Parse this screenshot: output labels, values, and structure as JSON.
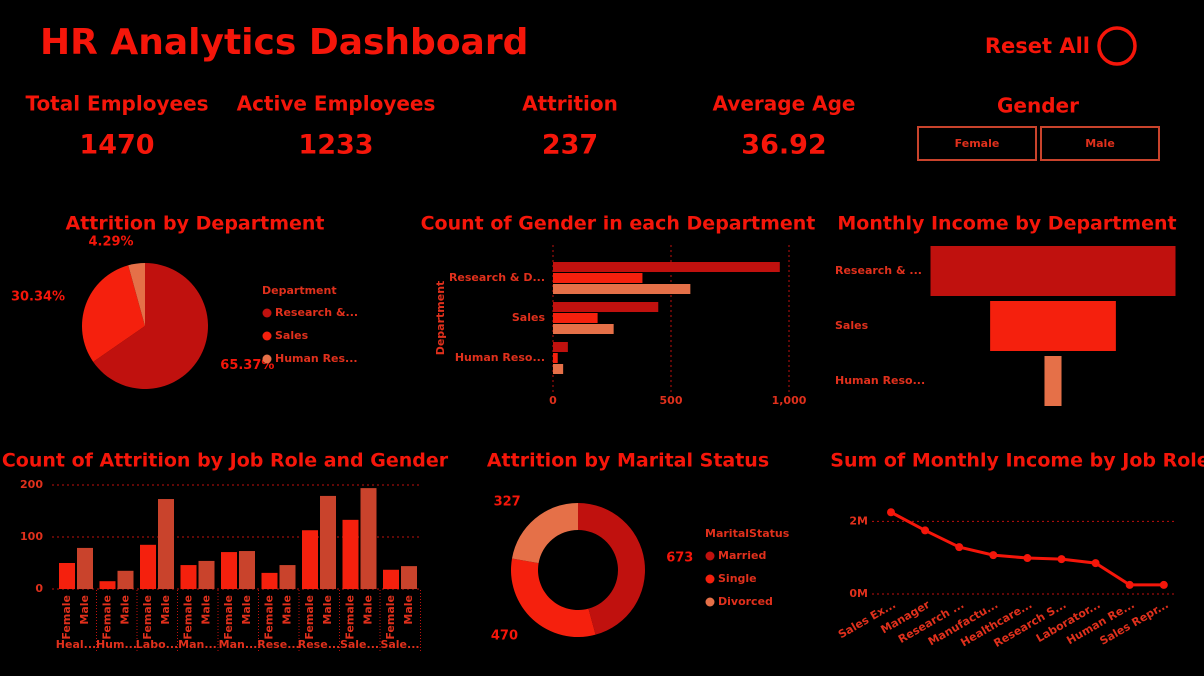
{
  "header": {
    "title": "HR Analytics Dashboard",
    "reset": "Reset All"
  },
  "kpis": [
    {
      "label": "Total Employees",
      "value": 1470
    },
    {
      "label": "Active Employees",
      "value": 1233
    },
    {
      "label": "Attrition",
      "value": 237
    },
    {
      "label": "Average Age",
      "value": 36.92
    }
  ],
  "gender_slicer": {
    "title": "Gender",
    "options": [
      "Female",
      "Male"
    ]
  },
  "chart_data": [
    {
      "type": "pie",
      "title": "Attrition by Department",
      "legend_title": "Department",
      "categories": [
        "Research &...",
        "Sales",
        "Human Res..."
      ],
      "values": [
        65.37,
        30.34,
        4.29
      ],
      "value_labels": [
        "65.37%",
        "30.34%",
        "4.29%"
      ],
      "colors": [
        "#c0110e",
        "#f5200d",
        "#e57048"
      ]
    },
    {
      "type": "hbar",
      "title": "Count of Gender in each Department",
      "y_label": "Department",
      "categories": [
        "Research & D...",
        "Sales",
        "Human Reso..."
      ],
      "series": [
        {
          "color": "#c0110e",
          "values": [
            961,
            446,
            63
          ]
        },
        {
          "color": "#f5200d",
          "values": [
            379,
            189,
            20
          ]
        },
        {
          "color": "#e57048",
          "values": [
            582,
            257,
            43
          ]
        }
      ],
      "xlim": [
        0,
        1000
      ],
      "xticks": [
        0,
        500,
        {
          "value": 1000,
          "label": "1,000"
        }
      ],
      "grid": true
    },
    {
      "type": "funnel",
      "title": "Monthly Income by Department",
      "categories": [
        "Research & ...",
        "Sales",
        "Human Reso..."
      ],
      "values": [
        6040000,
        3100000,
        420000
      ],
      "colors": [
        "#c0110e",
        "#f5200d",
        "#e57048"
      ]
    },
    {
      "type": "column",
      "title": "Count of Attrition by Job Role and Gender",
      "categories": [
        "Heal...",
        "Hum...",
        "Labo...",
        "Man...",
        "Man...",
        "Rese...",
        "Rese...",
        "Sale...",
        "Sale..."
      ],
      "series": [
        {
          "name": "Female",
          "color": "#f5200d",
          "values": [
            50,
            15,
            85,
            46,
            71,
            31,
            113,
            133,
            37
          ]
        },
        {
          "name": "Male",
          "color": "#c9432c",
          "values": [
            79,
            35,
            173,
            54,
            73,
            46,
            179,
            194,
            44
          ]
        }
      ],
      "ylim": [
        0,
        200
      ],
      "yticks": [
        0,
        100,
        200
      ],
      "grid": true
    },
    {
      "type": "donut",
      "title": "Attrition by Marital Status",
      "legend_title": "MaritalStatus",
      "categories": [
        "Married",
        "Single",
        "Divorced"
      ],
      "values": [
        673,
        470,
        327
      ],
      "colors": [
        "#c0110e",
        "#f5200d",
        "#e57048"
      ]
    },
    {
      "type": "line",
      "title": "Sum of Monthly Income by Job Role",
      "categories": [
        "Sales Ex...",
        "Manager",
        "Research ...",
        "Manufactu...",
        "Healthcare...",
        "Research S...",
        "Laborator...",
        "Human Re...",
        "Sales Repr..."
      ],
      "values": [
        2250000,
        1750000,
        1290000,
        1070000,
        990000,
        960000,
        850000,
        250000,
        250000
      ],
      "color": "#f5160a",
      "ylim": [
        0,
        3000000
      ],
      "yticks": [
        {
          "value": 0,
          "label": "0M"
        },
        {
          "value": 2000000,
          "label": "2M"
        }
      ],
      "grid": true
    }
  ]
}
